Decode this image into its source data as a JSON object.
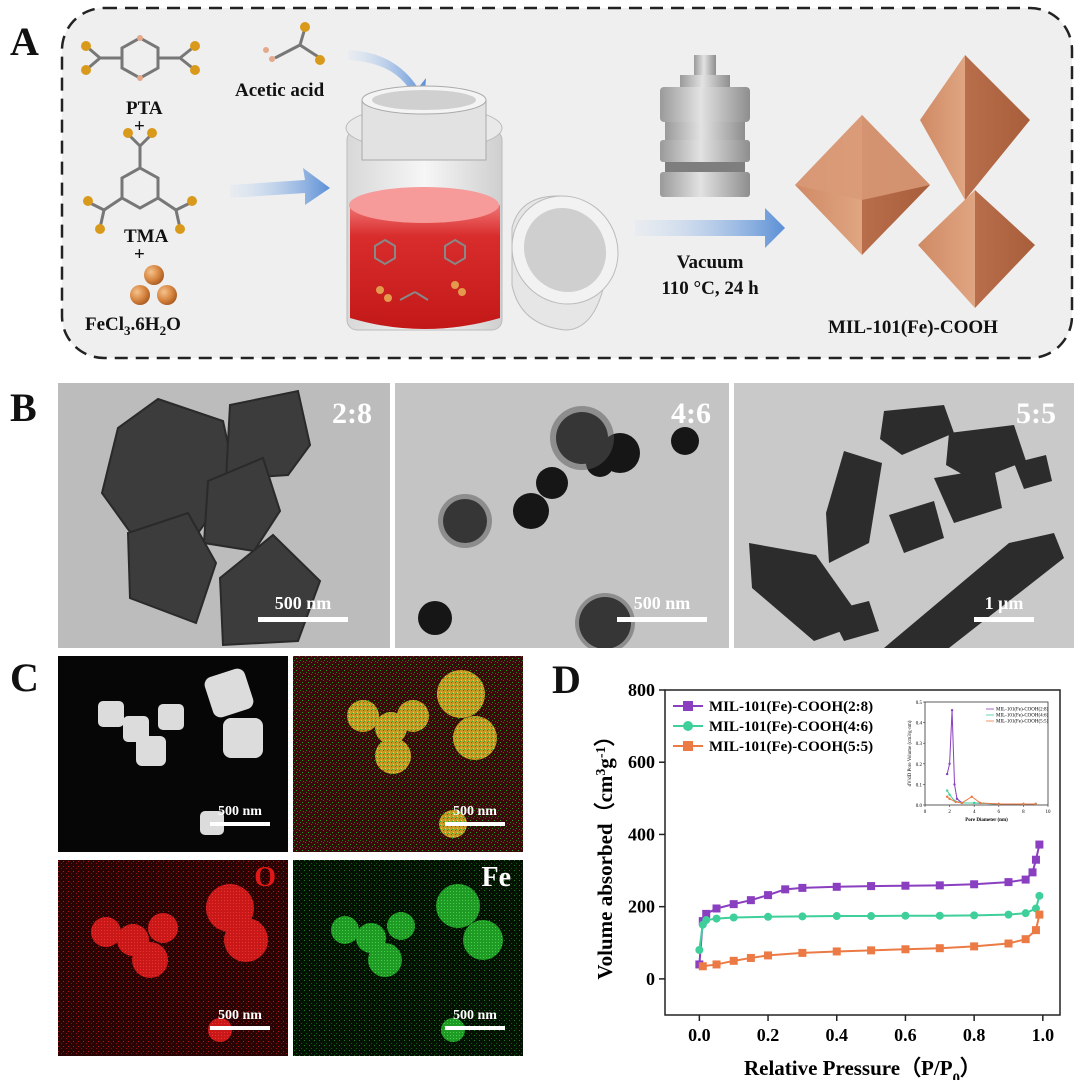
{
  "panel_a": {
    "label": "A",
    "pta_label": "PTA",
    "tma_label": "TMA",
    "plus": "+",
    "acetic_acid_label": "Acetic acid",
    "fecl3_label": "FeCl3.6H2O",
    "vacuum_label": "Vacuum",
    "conditions_label": "110 °C, 24 h",
    "product_label": "MIL-101(Fe)-COOH"
  },
  "panel_b": {
    "label": "B",
    "images": [
      {
        "ratio": "2:8",
        "scale_bar": "500 nm"
      },
      {
        "ratio": "4:6",
        "scale_bar": "500 nm"
      },
      {
        "ratio": "5:5",
        "scale_bar": "1 μm"
      }
    ]
  },
  "panel_c": {
    "label": "C",
    "images": [
      {
        "element": "",
        "scale_bar": "500 nm"
      },
      {
        "element": "",
        "scale_bar": "500 nm"
      },
      {
        "element": "O",
        "scale_bar": "500 nm"
      },
      {
        "element": "Fe",
        "scale_bar": "500 nm"
      }
    ]
  },
  "panel_d": {
    "label": "D"
  },
  "chart_data": [
    {
      "type": "line",
      "title": "",
      "xlabel": "Relative Pressure（P/P0）",
      "ylabel": "Volume absorbed（cm3g-1）",
      "xlim": [
        -0.1,
        1.05
      ],
      "ylim": [
        -100,
        800
      ],
      "x_ticks": [
        "0.0",
        "0.2",
        "0.4",
        "0.6",
        "0.8",
        "1.0"
      ],
      "y_ticks": [
        "0",
        "200",
        "400",
        "600",
        "800"
      ],
      "legend_position": "top-left",
      "series": [
        {
          "name": "MIL-101(Fe)-COOH(2:8)",
          "color": "#8a3fc0",
          "marker": "square",
          "x": [
            0.0,
            0.01,
            0.02,
            0.05,
            0.1,
            0.15,
            0.2,
            0.25,
            0.3,
            0.4,
            0.5,
            0.6,
            0.7,
            0.8,
            0.9,
            0.95,
            0.97,
            0.98,
            0.99
          ],
          "y": [
            40,
            160,
            180,
            195,
            207,
            218,
            232,
            248,
            252,
            255,
            257,
            258,
            259,
            262,
            268,
            275,
            295,
            330,
            372
          ]
        },
        {
          "name": "MIL-101(Fe)-COOH(4:6)",
          "color": "#3ecf9a",
          "marker": "circle",
          "x": [
            0.0,
            0.01,
            0.02,
            0.05,
            0.1,
            0.2,
            0.3,
            0.4,
            0.5,
            0.6,
            0.7,
            0.8,
            0.9,
            0.95,
            0.98,
            0.99
          ],
          "y": [
            80,
            150,
            163,
            167,
            170,
            172,
            173,
            174,
            174,
            175,
            175,
            176,
            178,
            182,
            195,
            230
          ]
        },
        {
          "name": "MIL-101(Fe)-COOH(5:5)",
          "color": "#ec7a45",
          "marker": "square",
          "x": [
            0.01,
            0.05,
            0.1,
            0.15,
            0.2,
            0.3,
            0.4,
            0.5,
            0.6,
            0.7,
            0.8,
            0.9,
            0.95,
            0.98,
            0.99
          ],
          "y": [
            35,
            40,
            50,
            58,
            65,
            72,
            76,
            79,
            82,
            85,
            90,
            98,
            110,
            135,
            178
          ]
        }
      ]
    },
    {
      "type": "line",
      "title": "",
      "xlabel": "Pore Diameter (nm)",
      "ylabel": "dV/dD Pore Volume (cm3/g·nm)",
      "xlim": [
        0,
        10
      ],
      "ylim": [
        0,
        0.5
      ],
      "x_ticks": [
        "0",
        "2",
        "4",
        "6",
        "8",
        "10"
      ],
      "y_ticks": [
        "0.0",
        "0.1",
        "0.2",
        "0.3",
        "0.4",
        "0.5"
      ],
      "legend_position": "top-right",
      "series": [
        {
          "name": "MIL-101(Fe)-COOH(2:8)",
          "color": "#8a3fc0",
          "x": [
            1.8,
            2.0,
            2.2,
            2.4,
            2.6,
            3.0,
            4.0,
            6.0,
            8.0,
            9.0
          ],
          "y": [
            0.15,
            0.2,
            0.46,
            0.1,
            0.03,
            0.01,
            0.01,
            0.005,
            0.005,
            0.005
          ]
        },
        {
          "name": "MIL-101(Fe)-COOH(4:6)",
          "color": "#3ecf9a",
          "x": [
            1.8,
            2.0,
            2.4,
            3.0,
            4.0,
            6.0,
            8.0,
            9.0
          ],
          "y": [
            0.07,
            0.05,
            0.02,
            0.01,
            0.01,
            0.005,
            0.005,
            0.005
          ]
        },
        {
          "name": "MIL-101(Fe)-COOH(5:5)",
          "color": "#ec7a45",
          "x": [
            1.8,
            2.0,
            2.5,
            3.0,
            3.8,
            4.5,
            6.0,
            8.0,
            9.0
          ],
          "y": [
            0.04,
            0.03,
            0.015,
            0.01,
            0.04,
            0.01,
            0.005,
            0.005,
            0.005
          ]
        }
      ]
    }
  ]
}
